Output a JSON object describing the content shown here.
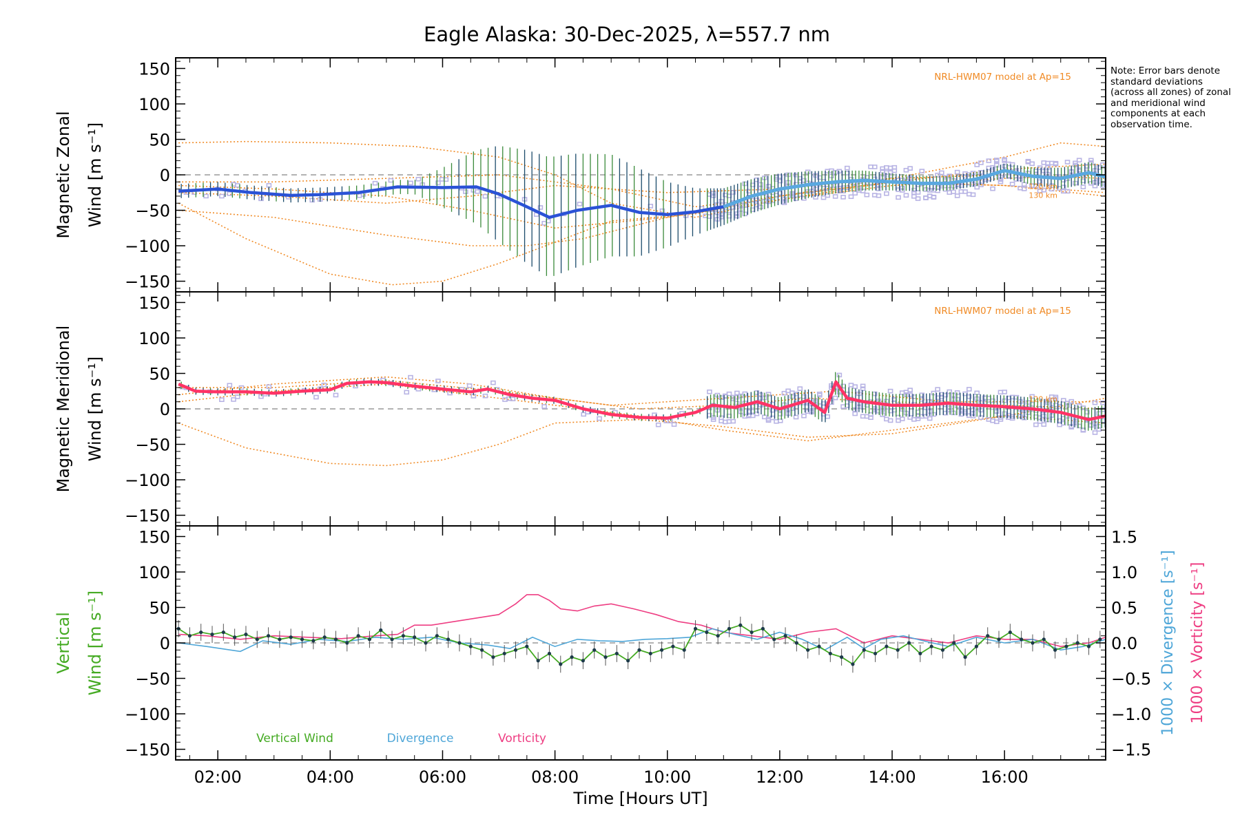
{
  "title": "Eagle Alaska: 30-Dec-2025, λ=557.7 nm",
  "note": "Note: Error bars denote standard deviations (across all zones) of zonal and meridional wind components at each observation time.",
  "colors": {
    "model": "#f08a24",
    "zonal_mean": "#2a52d6",
    "zonal_mean_late": "#5aa8e0",
    "meridional_mean": "#ff3366",
    "vertical": "#44aa22",
    "vertical_dots": "#1d3a4a",
    "divergence": "#4ea6d8",
    "vorticity": "#ee3d82",
    "zone_points": "#b8b4e4",
    "error_bar_dark": "#1a4a6a",
    "error_bar_green": "#3a8a3a",
    "zero_line": "#999999"
  },
  "chart_data": [
    {
      "type": "line",
      "panel": "zonal",
      "ylabel_line1": "Magnetic Zonal",
      "ylabel_line2": "Wind [m s⁻¹]",
      "ylim": [
        -165,
        165
      ],
      "yticks": [
        -150,
        -100,
        -50,
        0,
        50,
        100,
        150
      ],
      "model_label": "NRL-HWM07 model at Ap=15",
      "model_height_labels": [
        "120 km",
        "130 km"
      ],
      "mean_wind": {
        "x": [
          1.3,
          2.0,
          2.6,
          3.3,
          3.8,
          4.5,
          5.2,
          6.0,
          6.6,
          7.0,
          7.5,
          7.9,
          8.4,
          9.0,
          9.5,
          10.0,
          10.5,
          11.0,
          11.5,
          12.0,
          12.5,
          13.0,
          13.5,
          14.0,
          14.5,
          15.0,
          15.5,
          16.0,
          16.5,
          17.0,
          17.5,
          17.8
        ],
        "y": [
          -23,
          -20,
          -25,
          -29,
          -28,
          -25,
          -17,
          -18,
          -17,
          -27,
          -45,
          -60,
          -50,
          -43,
          -53,
          -56,
          -52,
          -45,
          -30,
          -20,
          -14,
          -10,
          -8,
          -10,
          -12,
          -12,
          -6,
          6,
          -2,
          -5,
          3,
          -3
        ]
      },
      "error_bar_sd": {
        "x": [
          5.5,
          6.0,
          6.5,
          7.0,
          7.5,
          7.9,
          8.4,
          9.0,
          9.5,
          10.0,
          10.5,
          11.0,
          12.0,
          13.0,
          14.0,
          15.0,
          16.0,
          17.0
        ],
        "y": [
          10,
          28,
          48,
          68,
          80,
          85,
          80,
          72,
          62,
          46,
          33,
          26,
          22,
          16,
          12,
          10,
          10,
          15
        ]
      },
      "model_curves": [
        {
          "x": [
            1.3,
            2.5,
            4.0,
            5.5,
            7.0,
            8.0,
            9.0,
            10.5,
            12.0,
            14.0,
            16.0,
            17.8
          ],
          "y": [
            45,
            47,
            45,
            40,
            25,
            0,
            -40,
            -60,
            -35,
            -10,
            8,
            15
          ]
        },
        {
          "x": [
            1.3,
            2.5,
            4.0,
            5.1,
            6.0,
            7.0,
            8.0,
            9.0,
            10.5,
            12.0,
            14.0,
            16.0,
            17.0,
            17.8
          ],
          "y": [
            -40,
            -90,
            -140,
            -155,
            -150,
            -125,
            -95,
            -65,
            -55,
            -30,
            -5,
            25,
            45,
            40
          ]
        },
        {
          "x": [
            1.3,
            3.0,
            5.0,
            6.5,
            7.5,
            8.5,
            10.0,
            12.0,
            14.0,
            16.0,
            17.8
          ],
          "y": [
            -50,
            -60,
            -85,
            -100,
            -100,
            -90,
            -60,
            -35,
            -15,
            -5,
            0
          ]
        },
        {
          "x": [
            1.3,
            3.0,
            5.0,
            6.5,
            8.0,
            10.0,
            12.0,
            14.0,
            16.0,
            17.8
          ],
          "y": [
            -15,
            -20,
            -30,
            -50,
            -75,
            -60,
            -30,
            -10,
            -15,
            -25
          ]
        },
        {
          "x": [
            1.3,
            3.0,
            5.0,
            6.5,
            8.0,
            10.0,
            12.0,
            14.0,
            16.0,
            17.8
          ],
          "y": [
            -25,
            -30,
            -40,
            -30,
            -15,
            -25,
            -20,
            -5,
            0,
            -5
          ]
        },
        {
          "x": [
            1.3,
            3.0,
            5.0,
            7.0,
            9.0,
            10.5,
            12.0,
            14.0,
            16.0,
            17.8
          ],
          "y": [
            -10,
            -10,
            -5,
            0,
            -20,
            -45,
            -30,
            -10,
            -15,
            -30
          ]
        }
      ]
    },
    {
      "type": "line",
      "panel": "meridional",
      "ylabel_line1": "Magnetic Meridional",
      "ylabel_line2": "Wind [m s⁻¹]",
      "ylim": [
        -165,
        165
      ],
      "yticks": [
        -150,
        -100,
        -50,
        0,
        50,
        100,
        150
      ],
      "model_label": "NRL-HWM07 model at Ap=15",
      "model_height_labels": [
        "120 km"
      ],
      "mean_wind": {
        "x": [
          1.3,
          1.6,
          2.0,
          2.5,
          3.0,
          3.5,
          4.0,
          4.3,
          4.7,
          5.0,
          5.5,
          6.0,
          6.5,
          6.8,
          7.2,
          7.6,
          8.0,
          8.5,
          9.0,
          9.5,
          10.0,
          10.5,
          10.8,
          11.2,
          11.6,
          12.0,
          12.5,
          12.8,
          13.0,
          13.2,
          13.5,
          14.0,
          14.5,
          15.0,
          15.5,
          16.0,
          16.5,
          17.0,
          17.5,
          17.8
        ],
        "y": [
          35,
          25,
          24,
          24,
          22,
          25,
          27,
          36,
          38,
          37,
          32,
          28,
          24,
          28,
          20,
          15,
          12,
          0,
          -8,
          -12,
          -13,
          -5,
          5,
          2,
          10,
          0,
          12,
          -5,
          38,
          15,
          10,
          5,
          5,
          8,
          5,
          3,
          0,
          -5,
          -15,
          -10
        ]
      },
      "model_curves": [
        {
          "x": [
            1.3,
            2.5,
            4.0,
            5.0,
            6.0,
            7.0,
            8.0,
            9.5,
            11.0,
            12.5,
            14.0,
            16.0,
            17.8
          ],
          "y": [
            -20,
            -55,
            -77,
            -80,
            -72,
            -50,
            -20,
            -15,
            -25,
            -40,
            -35,
            -10,
            15
          ]
        },
        {
          "x": [
            1.3,
            3.0,
            5.0,
            6.5,
            8.0,
            9.5,
            11.0,
            12.5,
            14.0,
            16.0,
            17.8
          ],
          "y": [
            20,
            35,
            45,
            35,
            15,
            0,
            5,
            15,
            10,
            5,
            0
          ]
        },
        {
          "x": [
            1.3,
            3.0,
            5.0,
            6.5,
            8.0,
            9.5,
            11.0,
            12.5,
            14.0,
            16.0,
            17.8
          ],
          "y": [
            10,
            25,
            35,
            20,
            5,
            -10,
            -30,
            -45,
            -30,
            -10,
            -20
          ]
        },
        {
          "x": [
            1.3,
            3.0,
            5.0,
            7.0,
            9.0,
            11.0,
            13.0,
            15.0,
            17.8
          ],
          "y": [
            30,
            30,
            40,
            25,
            5,
            15,
            25,
            10,
            10
          ]
        }
      ]
    },
    {
      "type": "line",
      "panel": "vertical",
      "ylabel_line1": "Vertical",
      "ylabel_line2": "Wind [m s⁻¹]",
      "ylim": [
        -165,
        165
      ],
      "yticks": [
        -150,
        -100,
        -50,
        0,
        50,
        100,
        150
      ],
      "y2lim": [
        -1.65,
        1.65
      ],
      "y2ticks": [
        -1.5,
        -1.0,
        -0.5,
        0.0,
        0.5,
        1.0,
        1.5
      ],
      "y2ticklabels": [
        "−1.5",
        "−1.0",
        "−0.5",
        "0.0",
        "0.5",
        "1.0",
        "1.5"
      ],
      "y2label_divergence": "1000 × Divergence [s⁻¹]",
      "y2label_vorticity": "1000 × Vorticity [s⁻¹]",
      "legend": [
        "Vertical Wind",
        "Divergence",
        "Vorticity"
      ],
      "vertical_wind": {
        "x": [
          1.3,
          1.5,
          1.7,
          1.9,
          2.1,
          2.3,
          2.5,
          2.7,
          2.9,
          3.1,
          3.3,
          3.5,
          3.7,
          3.9,
          4.1,
          4.3,
          4.5,
          4.7,
          4.9,
          5.1,
          5.3,
          5.5,
          5.7,
          5.9,
          6.1,
          6.3,
          6.5,
          6.7,
          6.9,
          7.1,
          7.3,
          7.5,
          7.7,
          7.9,
          8.1,
          8.3,
          8.5,
          8.7,
          8.9,
          9.1,
          9.3,
          9.5,
          9.7,
          9.9,
          10.1,
          10.3,
          10.5,
          10.7,
          10.9,
          11.1,
          11.3,
          11.5,
          11.7,
          11.9,
          12.1,
          12.3,
          12.5,
          12.7,
          12.9,
          13.1,
          13.3,
          13.5,
          13.7,
          13.9,
          14.1,
          14.3,
          14.5,
          14.7,
          14.9,
          15.1,
          15.3,
          15.5,
          15.7,
          15.9,
          16.1,
          16.3,
          16.5,
          16.7,
          16.9,
          17.1,
          17.3,
          17.5,
          17.7
        ],
        "y": [
          20,
          10,
          15,
          12,
          15,
          8,
          12,
          5,
          10,
          5,
          8,
          5,
          3,
          8,
          5,
          0,
          10,
          5,
          18,
          5,
          10,
          8,
          0,
          10,
          5,
          0,
          -5,
          -10,
          -20,
          -15,
          -10,
          -5,
          -25,
          -15,
          -30,
          -20,
          -25,
          -10,
          -20,
          -15,
          -25,
          -10,
          -15,
          -10,
          -5,
          -10,
          20,
          15,
          10,
          20,
          25,
          15,
          20,
          5,
          10,
          0,
          -10,
          -5,
          -15,
          -20,
          -30,
          -10,
          -15,
          -5,
          -10,
          0,
          -15,
          -5,
          -10,
          0,
          -20,
          -5,
          10,
          5,
          15,
          5,
          0,
          5,
          -10,
          -5,
          0,
          -5,
          5
        ]
      },
      "divergence": {
        "x": [
          1.3,
          1.8,
          2.4,
          2.8,
          3.3,
          3.8,
          4.3,
          4.8,
          5.3,
          5.8,
          6.3,
          6.8,
          7.2,
          7.6,
          8.0,
          8.4,
          8.8,
          9.2,
          9.6,
          10.0,
          10.4,
          10.8,
          11.2,
          11.6,
          12.0,
          12.4,
          12.8,
          13.2,
          13.5,
          13.8,
          14.2,
          14.6,
          15.0,
          15.5,
          16.0,
          16.5,
          17.0,
          17.4,
          17.8
        ],
        "y": [
          0.0,
          -0.05,
          -0.12,
          0.03,
          -0.02,
          0.05,
          0.02,
          0.08,
          0.05,
          0.08,
          0.0,
          -0.03,
          -0.08,
          0.08,
          -0.05,
          0.05,
          0.03,
          0.02,
          0.05,
          0.06,
          0.08,
          0.2,
          0.12,
          0.05,
          0.15,
          0.05,
          -0.1,
          0.08,
          -0.08,
          0.05,
          0.1,
          0.02,
          -0.05,
          0.08,
          0.0,
          0.05,
          -0.1,
          -0.05,
          0.05
        ]
      },
      "vorticity": {
        "x": [
          1.3,
          1.8,
          2.4,
          3.0,
          3.6,
          4.2,
          4.8,
          5.2,
          5.5,
          5.8,
          6.2,
          6.6,
          7.0,
          7.3,
          7.5,
          7.7,
          7.9,
          8.1,
          8.4,
          8.7,
          9.0,
          9.4,
          9.8,
          10.2,
          10.6,
          11.0,
          11.5,
          12.0,
          12.5,
          13.0,
          13.5,
          14.0,
          14.5,
          15.0,
          15.5,
          16.0,
          16.5,
          17.0,
          17.5,
          17.8
        ],
        "y": [
          0.12,
          0.1,
          0.05,
          0.1,
          0.08,
          0.06,
          0.1,
          0.12,
          0.25,
          0.25,
          0.3,
          0.35,
          0.4,
          0.55,
          0.68,
          0.68,
          0.6,
          0.48,
          0.45,
          0.52,
          0.55,
          0.48,
          0.4,
          0.3,
          0.25,
          0.15,
          0.1,
          0.05,
          0.15,
          0.2,
          0.0,
          0.1,
          0.05,
          0.0,
          0.1,
          0.05,
          0.05,
          -0.05,
          0.0,
          0.08
        ]
      }
    }
  ],
  "x_axis": {
    "label": "Time [Hours UT]",
    "range": [
      1.25,
      17.8
    ],
    "ticks": [
      2,
      4,
      6,
      8,
      10,
      12,
      14,
      16
    ],
    "ticklabels": [
      "02:00",
      "04:00",
      "06:00",
      "08:00",
      "10:00",
      "12:00",
      "14:00",
      "16:00"
    ]
  }
}
